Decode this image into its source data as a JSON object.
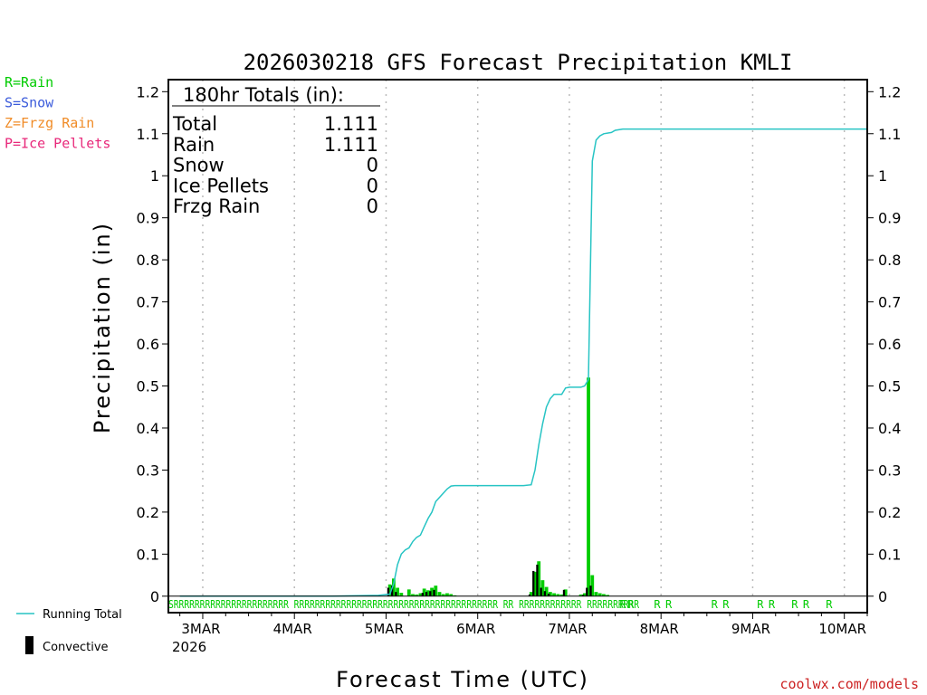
{
  "chart_data": {
    "type": "bar+line",
    "title": "2026030218 GFS Forecast Precipitation KMLI",
    "xlabel": "Forecast Time (UTC)",
    "ylabel": "Precipitation (in)",
    "ylim": [
      0,
      1.22
    ],
    "xlim_hours": [
      -3,
      180
    ],
    "yticks": [
      0,
      0.1,
      0.2,
      0.3,
      0.4,
      0.5,
      0.6,
      0.7,
      0.8,
      0.9,
      1,
      1.1,
      1.2
    ],
    "ytick_labels": [
      "0",
      "0.1",
      "0.2",
      "0.3",
      "0.4",
      "0.5",
      "0.6",
      "0.7",
      "0.8",
      "0.9",
      "1",
      "1.1",
      "1.2"
    ],
    "x_ticks": [
      {
        "hour": 6,
        "label": "3MAR"
      },
      {
        "hour": 30,
        "label": "4MAR"
      },
      {
        "hour": 54,
        "label": "5MAR"
      },
      {
        "hour": 78,
        "label": "6MAR"
      },
      {
        "hour": 102,
        "label": "7MAR"
      },
      {
        "hour": 126,
        "label": "8MAR"
      },
      {
        "hour": 150,
        "label": "9MAR"
      },
      {
        "hour": 174,
        "label": "10MAR"
      }
    ],
    "year_label": "2026",
    "grid": "vertical dotted at day boundaries",
    "legend_top": [
      {
        "label": "R=Rain",
        "color": "#00cc00"
      },
      {
        "label": "S=Snow",
        "color": "#3b5bdb"
      },
      {
        "label": "Z=Frzg Rain",
        "color": "#f08c28"
      },
      {
        "label": "P=Ice Pellets",
        "color": "#e8287a"
      }
    ],
    "legend_bottom": [
      {
        "label": "Running Total",
        "color": "#27c4c4"
      },
      {
        "label": "Convective",
        "color": "#000000"
      }
    ],
    "totals_box": {
      "header": "180hr Totals (in):",
      "rows": [
        {
          "label": "Total",
          "value": "1.111"
        },
        {
          "label": "Rain",
          "value": "1.111"
        },
        {
          "label": "Snow",
          "value": "0"
        },
        {
          "label": "Ice Pellets",
          "value": "0"
        },
        {
          "label": "Frzg Rain",
          "value": "0"
        }
      ]
    },
    "running_total": {
      "name": "Running Total",
      "color": "#27c4c4",
      "points": [
        [
          0,
          0
        ],
        [
          40,
          0
        ],
        [
          52,
          0.002
        ],
        [
          55,
          0.005
        ],
        [
          56,
          0.03
        ],
        [
          57,
          0.075
        ],
        [
          58,
          0.1
        ],
        [
          59,
          0.11
        ],
        [
          60,
          0.115
        ],
        [
          61,
          0.13
        ],
        [
          62,
          0.14
        ],
        [
          63,
          0.145
        ],
        [
          64,
          0.165
        ],
        [
          65,
          0.185
        ],
        [
          66,
          0.2
        ],
        [
          67,
          0.225
        ],
        [
          68,
          0.235
        ],
        [
          69,
          0.245
        ],
        [
          70,
          0.255
        ],
        [
          71,
          0.262
        ],
        [
          72,
          0.263
        ],
        [
          78,
          0.263
        ],
        [
          90,
          0.263
        ],
        [
          92,
          0.265
        ],
        [
          93,
          0.3
        ],
        [
          94,
          0.36
        ],
        [
          95,
          0.41
        ],
        [
          96,
          0.45
        ],
        [
          97,
          0.47
        ],
        [
          98,
          0.48
        ],
        [
          100,
          0.48
        ],
        [
          101,
          0.495
        ],
        [
          102,
          0.497
        ],
        [
          105,
          0.497
        ],
        [
          106,
          0.5
        ],
        [
          107,
          0.515
        ],
        [
          108,
          1.035
        ],
        [
          109,
          1.085
        ],
        [
          110,
          1.095
        ],
        [
          111,
          1.1
        ],
        [
          113,
          1.103
        ],
        [
          114,
          1.108
        ],
        [
          116,
          1.111
        ],
        [
          180,
          1.111
        ]
      ]
    },
    "series": [
      {
        "name": "Rain",
        "color": "#00cc00",
        "hours": [
          55,
          56,
          57,
          58,
          60,
          61,
          62,
          63,
          64,
          65,
          66,
          67,
          68,
          69,
          70,
          71,
          72,
          92,
          93,
          94,
          95,
          96,
          97,
          98,
          99,
          100,
          101,
          105,
          106,
          107,
          108,
          109,
          110,
          111,
          112
        ],
        "values": [
          0.028,
          0.042,
          0.02,
          0.008,
          0.016,
          0.005,
          0.004,
          0.007,
          0.018,
          0.014,
          0.02,
          0.025,
          0.01,
          0.005,
          0.007,
          0.005,
          0.002,
          0.01,
          0.058,
          0.083,
          0.038,
          0.022,
          0.01,
          0.007,
          0.005,
          0.004,
          0.016,
          0.004,
          0.007,
          0.52,
          0.05,
          0.01,
          0.007,
          0.005,
          0.003
        ]
      },
      {
        "name": "Convective",
        "color": "#000000",
        "hours": [
          55,
          56,
          57,
          64,
          65,
          66,
          67,
          92,
          93,
          94,
          95,
          96,
          97,
          101,
          106,
          107,
          108
        ],
        "values": [
          0.02,
          0.025,
          0.01,
          0.008,
          0.01,
          0.012,
          0.015,
          0.004,
          0.06,
          0.075,
          0.02,
          0.012,
          0.006,
          0.015,
          0.003,
          0.02,
          0.025
        ]
      }
    ],
    "ptype_strip": {
      "text": "SRRRRRRRRRRRRRRRRRRRRRR RRRRRRRRRRRRRRRRRRRRRRRRRRRRRRRRRRRRRRR RR RRRRRRRRRRRR RRRRRRRRRR",
      "late_markers": [
        "R",
        "R",
        "R",
        "R",
        "R",
        "R",
        "R",
        "R",
        "R",
        "R",
        "R"
      ]
    },
    "credit": "coolwx.com/models"
  }
}
